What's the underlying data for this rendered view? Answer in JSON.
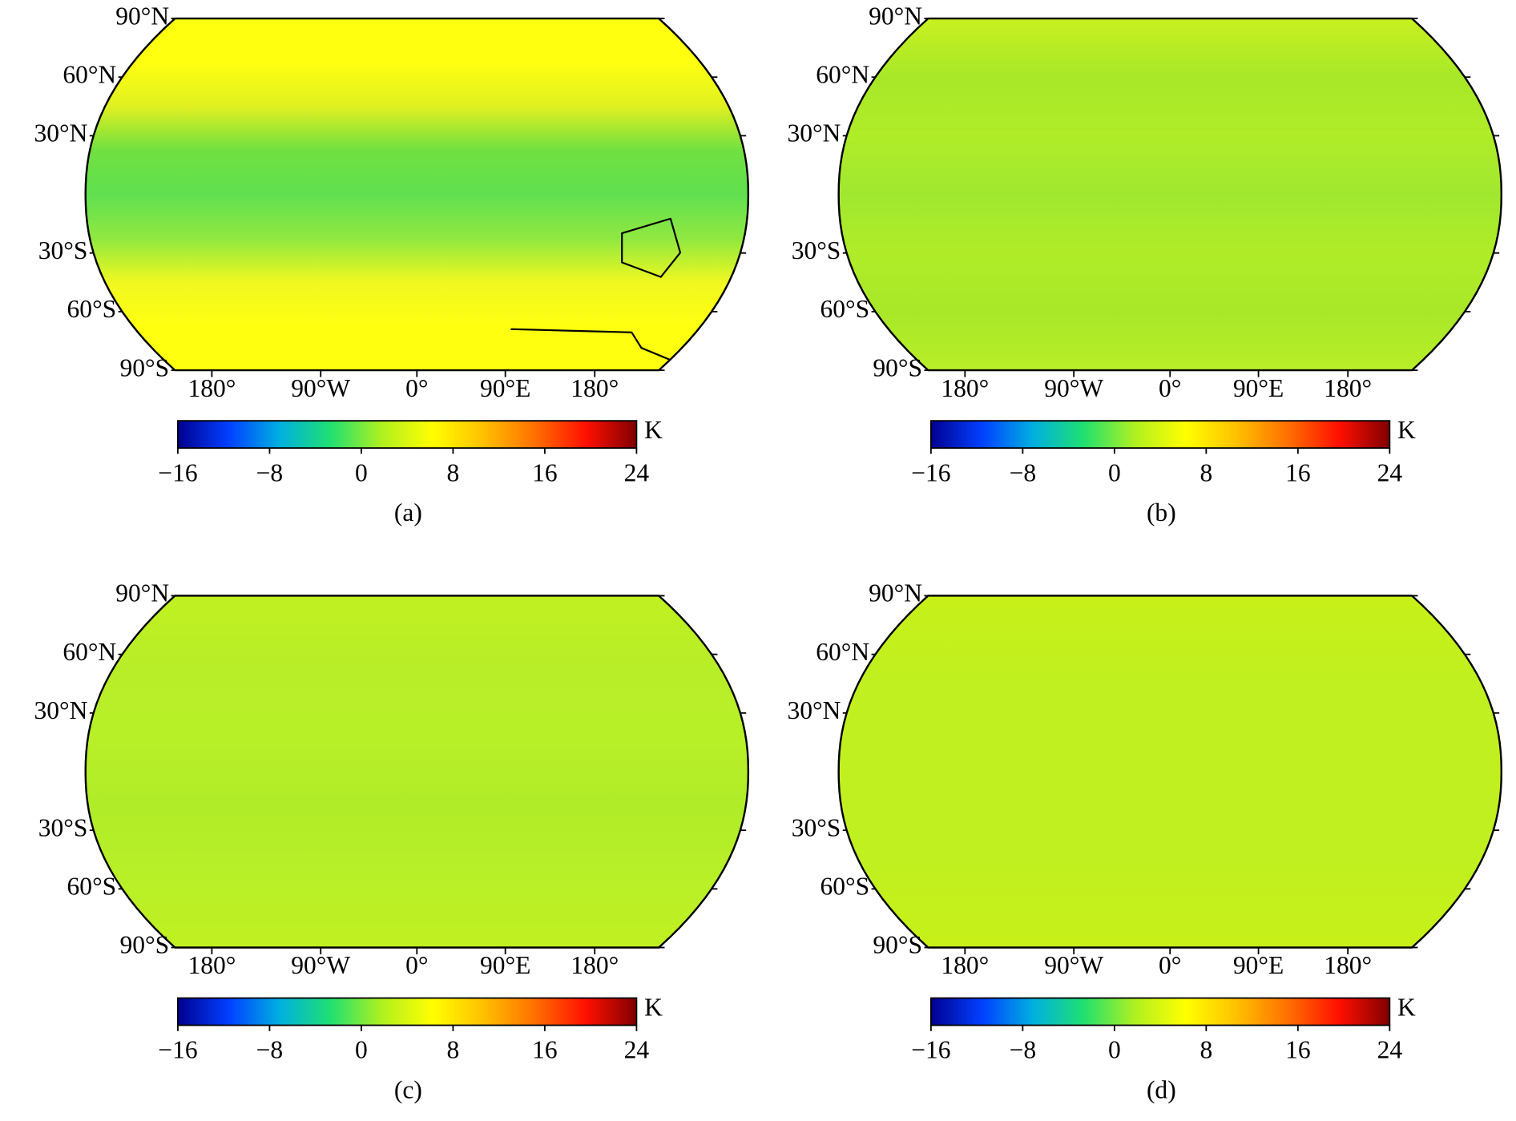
{
  "figure": {
    "panels": [
      {
        "caption": "(a)",
        "colors": [
          "#ffff10",
          "#ffff10",
          "#e0f020",
          "#70e040",
          "#60e050",
          "#90e840",
          "#f0f820",
          "#ffff10",
          "#ffff10"
        ]
      },
      {
        "caption": "(b)",
        "colors": [
          "#c8f020",
          "#a8e828",
          "#b0ec28",
          "#a0e830",
          "#b0ec28",
          "#a8e828",
          "#b8ee28"
        ]
      },
      {
        "caption": "(c)",
        "colors": [
          "#c0f020",
          "#b8ee28",
          "#b8f028",
          "#b0ec28",
          "#b8f028",
          "#c0f020"
        ]
      },
      {
        "caption": "(d)",
        "colors": [
          "#c8f018",
          "#c0f020",
          "#c0f020",
          "#c0f020",
          "#c8f018"
        ]
      }
    ],
    "lat_labels": [
      {
        "value": 90,
        "label": "90°N"
      },
      {
        "value": 60,
        "label": "60°N"
      },
      {
        "value": 30,
        "label": "30°N"
      },
      {
        "value": -30,
        "label": "30°S"
      },
      {
        "value": -60,
        "label": "60°S"
      },
      {
        "value": -90,
        "label": "90°S"
      }
    ],
    "lon_labels": [
      "180°",
      "90°W",
      "0°",
      "90°E",
      "180°"
    ],
    "colorbar": {
      "unit": "K",
      "lim": [
        -16,
        24
      ],
      "ticks": [
        {
          "value": -16,
          "label": "−16"
        },
        {
          "value": -8,
          "label": "−8"
        },
        0,
        8,
        16,
        24
      ],
      "colors": [
        "#00008f",
        "#0040ff",
        "#00b0e0",
        "#20e070",
        "#b0f020",
        "#ffff00",
        "#ffc000",
        "#ff7000",
        "#ff1000",
        "#800000"
      ]
    }
  }
}
